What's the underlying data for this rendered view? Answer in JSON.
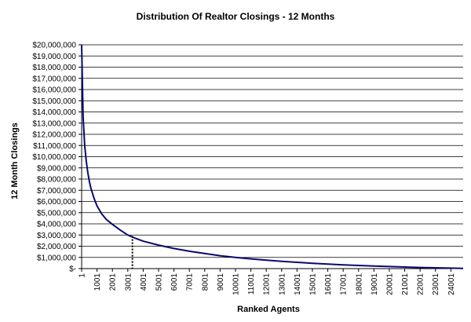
{
  "chart_data": {
    "type": "line",
    "title": "Distribution Of Realtor Closings - 12 Months",
    "xlabel": "Ranked Agents",
    "ylabel": "12 Month Closings",
    "xlim": [
      1,
      24800
    ],
    "ylim": [
      0,
      20000000
    ],
    "grid": true,
    "legend": "none",
    "colors": {
      "series": "#0a0a6e",
      "grid": "#000000",
      "marker": "#000000"
    },
    "x_tick_labels": [
      "1",
      "1001",
      "2001",
      "3001",
      "4001",
      "5001",
      "6001",
      "7001",
      "8001",
      "9001",
      "10001",
      "11001",
      "12001",
      "13001",
      "14001",
      "15001",
      "16001",
      "17001",
      "18001",
      "19001",
      "20001",
      "21001",
      "22001",
      "23001",
      "24001"
    ],
    "y_tick_labels": [
      "$-",
      "$1,000,000",
      "$2,000,000",
      "$3,000,000",
      "$4,000,000",
      "$5,000,000",
      "$6,000,000",
      "$7,000,000",
      "$8,000,000",
      "$9,000,000",
      "$10,000,000",
      "$11,000,000",
      "$12,000,000",
      "$13,000,000",
      "$14,000,000",
      "$15,000,000",
      "$16,000,000",
      "$17,000,000",
      "$18,000,000",
      "$19,000,000",
      "$20,000,000"
    ],
    "series": [
      {
        "x": [
          1,
          100,
          200,
          300,
          400,
          500,
          600,
          800,
          1001,
          1300,
          1600,
          2001,
          2500,
          3001,
          3500,
          4001,
          5001,
          6001,
          7001,
          8001,
          9001,
          10001,
          11001,
          12001,
          13001,
          14001,
          15001,
          16001,
          17001,
          18001,
          19001,
          20001,
          21001,
          22001,
          23001,
          24001,
          24800
        ],
        "y": [
          20000000,
          13500000,
          11000000,
          9600000,
          8600000,
          7800000,
          7200000,
          6300000,
          5600000,
          4900000,
          4400000,
          3950000,
          3450000,
          3000000,
          2700000,
          2450000,
          2100000,
          1800000,
          1550000,
          1350000,
          1150000,
          1000000,
          870000,
          760000,
          650000,
          560000,
          480000,
          410000,
          340000,
          280000,
          230000,
          180000,
          140000,
          100000,
          70000,
          40000,
          20000
        ]
      }
    ],
    "reference_marker": {
      "x": 3301,
      "y": 2900000
    }
  }
}
